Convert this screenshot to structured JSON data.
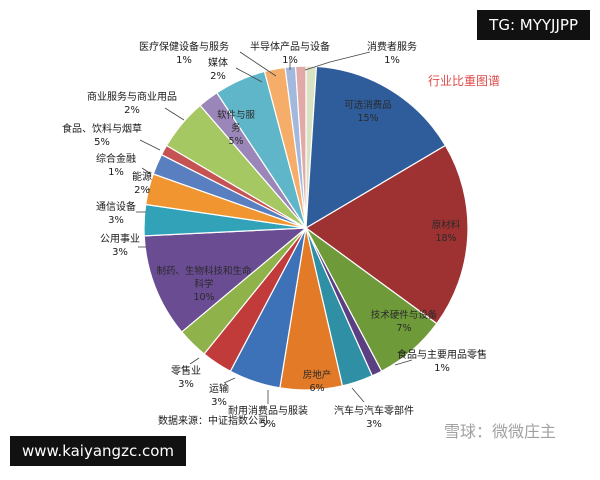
{
  "tags": {
    "tg": "TG: MYYJJPP",
    "site": "www.kaiyangzc.com"
  },
  "watermark": "雪球：微微庄主",
  "chart_data": {
    "type": "pie",
    "title": "行业比重图谱",
    "source": "数据来源：中证指数公司",
    "slices": [
      {
        "name": "消费者服务",
        "value": 1,
        "label": "1%",
        "color": "#d9e2c2"
      },
      {
        "name": "可选消费品",
        "value": 15,
        "label": "15%",
        "color": "#2f5d9c"
      },
      {
        "name": "原材料",
        "value": 18,
        "label": "18%",
        "color": "#9e3232"
      },
      {
        "name": "技术硬件与设备",
        "value": 7,
        "label": "7%",
        "color": "#6e9a3a"
      },
      {
        "name": "食品与主要用品零售",
        "value": 1,
        "label": "1%",
        "color": "#5a3f82"
      },
      {
        "name": "汽车与汽车零部件",
        "value": 3,
        "label": "3%",
        "color": "#2e8fa5"
      },
      {
        "name": "房地产",
        "value": 6,
        "label": "6%",
        "color": "#e37a27"
      },
      {
        "name": "耐用消费品与服装",
        "value": 5,
        "label": "5%",
        "color": "#3d72b8"
      },
      {
        "name": "运输",
        "value": 3,
        "label": "3%",
        "color": "#c23b3b"
      },
      {
        "name": "零售业",
        "value": 3,
        "label": "3%",
        "color": "#8fb34a"
      },
      {
        "name": "制药、生物科技和生命科学",
        "value": 10,
        "label": "10%",
        "color": "#6a4c93"
      },
      {
        "name": "公用事业",
        "value": 3,
        "label": "3%",
        "color": "#31a2b8"
      },
      {
        "name": "通信设备",
        "value": 3,
        "label": "3%",
        "color": "#f0952f"
      },
      {
        "name": "能源",
        "value": 2,
        "label": "2%",
        "color": "#5a7fc0"
      },
      {
        "name": "综合金融",
        "value": 1,
        "label": "1%",
        "color": "#c55353"
      },
      {
        "name": "食品、饮料与烟草",
        "value": 5,
        "label": "5%",
        "color": "#a6c862"
      },
      {
        "name": "商业服务与商业用品",
        "value": 2,
        "label": "2%",
        "color": "#9a86b8"
      },
      {
        "name": "软件与服务",
        "value": 5,
        "label": "5%",
        "color": "#5fb6c9"
      },
      {
        "name": "媒体",
        "value": 2,
        "label": "2%",
        "color": "#f7ad6a"
      },
      {
        "name": "医疗保健设备与服务",
        "value": 1,
        "label": "1%",
        "color": "#a3b8dd"
      },
      {
        "name": "半导体产品与设备",
        "value": 1,
        "label": "1%",
        "color": "#e2a9a9"
      }
    ]
  }
}
